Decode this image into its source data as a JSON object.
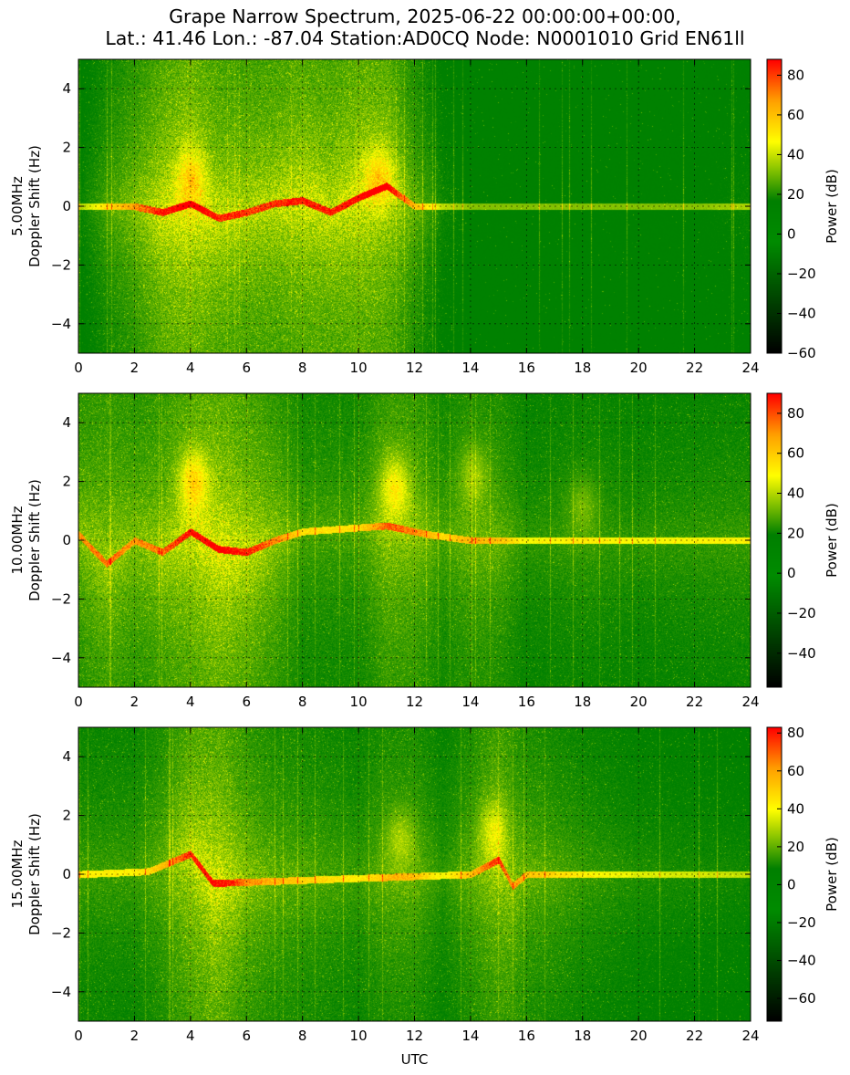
{
  "title": {
    "line1": "Grape Narrow Spectrum, 2025-06-22 00:00:00+00:00,",
    "line2": "Lat.: 41.46 Lon.: -87.04 Station:AD0CQ Node: N0001010 Grid EN61ll"
  },
  "chart_data": [
    {
      "type": "heatmap",
      "title": "",
      "xlabel": "",
      "ylabel_line1": "5.00MHz",
      "ylabel_line2": "Doppler Shift (Hz)",
      "xlim": [
        0,
        24
      ],
      "ylim": [
        -5,
        5
      ],
      "xticks": [
        0,
        2,
        4,
        6,
        8,
        10,
        12,
        14,
        16,
        18,
        20,
        22,
        24
      ],
      "yticks": [
        4,
        2,
        0,
        -2,
        -4
      ],
      "grid": true,
      "colorbar": {
        "label": "Power (dB)",
        "min": -60,
        "max": 88,
        "ticks": [
          80,
          60,
          40,
          20,
          0,
          -20,
          -40,
          -60
        ]
      },
      "activity": [
        {
          "t": 0,
          "a": 0.1
        },
        {
          "t": 1,
          "a": 0.35
        },
        {
          "t": 2,
          "a": 0.55
        },
        {
          "t": 3,
          "a": 0.85
        },
        {
          "t": 4,
          "a": 1.0
        },
        {
          "t": 5,
          "a": 0.8
        },
        {
          "t": 6,
          "a": 0.75
        },
        {
          "t": 7,
          "a": 0.75
        },
        {
          "t": 8,
          "a": 0.85
        },
        {
          "t": 9,
          "a": 0.8
        },
        {
          "t": 10,
          "a": 0.9
        },
        {
          "t": 11,
          "a": 0.85
        },
        {
          "t": 12,
          "a": 0.45
        },
        {
          "t": 13,
          "a": 0.15
        },
        {
          "t": 14,
          "a": 0.05
        },
        {
          "t": 22,
          "a": 0.05
        },
        {
          "t": 24,
          "a": 0.12
        }
      ],
      "doppler_trace": [
        {
          "t": 0,
          "f": 0.0
        },
        {
          "t": 2,
          "f": 0.0
        },
        {
          "t": 3,
          "f": -0.2
        },
        {
          "t": 4,
          "f": 0.1
        },
        {
          "t": 5,
          "f": -0.4
        },
        {
          "t": 6,
          "f": -0.2
        },
        {
          "t": 7,
          "f": 0.1
        },
        {
          "t": 8,
          "f": 0.2
        },
        {
          "t": 9,
          "f": -0.2
        },
        {
          "t": 10,
          "f": 0.3
        },
        {
          "t": 11,
          "f": 0.7
        },
        {
          "t": 12,
          "f": 0.0
        },
        {
          "t": 24,
          "f": 0.0
        }
      ],
      "peaks": [
        {
          "t": 4.0,
          "f": 1.0,
          "strength": 0.6
        },
        {
          "t": 10.7,
          "f": 1.0,
          "strength": 0.6
        }
      ]
    },
    {
      "type": "heatmap",
      "title": "",
      "xlabel": "",
      "ylabel_line1": "10.00MHz",
      "ylabel_line2": "Doppler Shift (Hz)",
      "xlim": [
        0,
        24
      ],
      "ylim": [
        -5,
        5
      ],
      "xticks": [
        0,
        2,
        4,
        6,
        8,
        10,
        12,
        14,
        16,
        18,
        20,
        22,
        24
      ],
      "yticks": [
        4,
        2,
        0,
        -2,
        -4
      ],
      "grid": true,
      "colorbar": {
        "label": "Power (dB)",
        "min": -57,
        "max": 90,
        "ticks": [
          80,
          60,
          40,
          20,
          0,
          -20,
          -40
        ]
      },
      "activity": [
        {
          "t": 0,
          "a": 0.55
        },
        {
          "t": 1,
          "a": 0.65
        },
        {
          "t": 2,
          "a": 0.55
        },
        {
          "t": 3,
          "a": 0.65
        },
        {
          "t": 4,
          "a": 0.85
        },
        {
          "t": 5,
          "a": 0.95
        },
        {
          "t": 6,
          "a": 0.8
        },
        {
          "t": 7,
          "a": 0.6
        },
        {
          "t": 8,
          "a": 0.35
        },
        {
          "t": 10,
          "a": 0.35
        },
        {
          "t": 11,
          "a": 0.65
        },
        {
          "t": 12,
          "a": 0.6
        },
        {
          "t": 13,
          "a": 0.35
        },
        {
          "t": 14,
          "a": 0.5
        },
        {
          "t": 15,
          "a": 0.45
        },
        {
          "t": 16,
          "a": 0.25
        },
        {
          "t": 18,
          "a": 0.3
        },
        {
          "t": 20,
          "a": 0.25
        },
        {
          "t": 24,
          "a": 0.3
        }
      ],
      "doppler_trace": [
        {
          "t": 0,
          "f": 0.2
        },
        {
          "t": 1,
          "f": -0.8
        },
        {
          "t": 2,
          "f": 0.0
        },
        {
          "t": 3,
          "f": -0.4
        },
        {
          "t": 4,
          "f": 0.3
        },
        {
          "t": 5,
          "f": -0.3
        },
        {
          "t": 6,
          "f": -0.4
        },
        {
          "t": 7,
          "f": 0.0
        },
        {
          "t": 8,
          "f": 0.3
        },
        {
          "t": 11,
          "f": 0.5
        },
        {
          "t": 12.5,
          "f": 0.2
        },
        {
          "t": 14,
          "f": 0.0
        },
        {
          "t": 24,
          "f": 0.0
        }
      ],
      "peaks": [
        {
          "t": 4.1,
          "f": 2.0,
          "strength": 0.8
        },
        {
          "t": 11.3,
          "f": 1.8,
          "strength": 0.7
        },
        {
          "t": 14.1,
          "f": 2.2,
          "strength": 0.4
        },
        {
          "t": 18.0,
          "f": 1.2,
          "strength": 0.3
        }
      ]
    },
    {
      "type": "heatmap",
      "title": "",
      "xlabel": "UTC",
      "ylabel_line1": "15.00MHz",
      "ylabel_line2": "Doppler Shift (Hz)",
      "xlim": [
        0,
        24
      ],
      "ylim": [
        -5,
        5
      ],
      "xticks": [
        0,
        2,
        4,
        6,
        8,
        10,
        12,
        14,
        16,
        18,
        20,
        22,
        24
      ],
      "yticks": [
        4,
        2,
        0,
        -2,
        -4
      ],
      "grid": true,
      "colorbar": {
        "label": "Power (dB)",
        "min": -72,
        "max": 83,
        "ticks": [
          80,
          60,
          40,
          20,
          0,
          -20,
          -40,
          -60
        ]
      },
      "activity": [
        {
          "t": 0,
          "a": 0.3
        },
        {
          "t": 2,
          "a": 0.3
        },
        {
          "t": 3,
          "a": 0.45
        },
        {
          "t": 4,
          "a": 0.8
        },
        {
          "t": 5,
          "a": 0.9
        },
        {
          "t": 6,
          "a": 0.6
        },
        {
          "t": 7,
          "a": 0.45
        },
        {
          "t": 8,
          "a": 0.4
        },
        {
          "t": 10,
          "a": 0.3
        },
        {
          "t": 11,
          "a": 0.45
        },
        {
          "t": 12,
          "a": 0.45
        },
        {
          "t": 13,
          "a": 0.25
        },
        {
          "t": 14,
          "a": 0.45
        },
        {
          "t": 15,
          "a": 0.7
        },
        {
          "t": 16,
          "a": 0.45
        },
        {
          "t": 18,
          "a": 0.3
        },
        {
          "t": 20,
          "a": 0.2
        },
        {
          "t": 24,
          "a": 0.15
        }
      ],
      "doppler_trace": [
        {
          "t": 0,
          "f": 0.0
        },
        {
          "t": 2.5,
          "f": 0.1
        },
        {
          "t": 4,
          "f": 0.7
        },
        {
          "t": 4.8,
          "f": -0.3
        },
        {
          "t": 14,
          "f": 0.0
        },
        {
          "t": 15,
          "f": 0.5
        },
        {
          "t": 15.5,
          "f": -0.4
        },
        {
          "t": 16,
          "f": 0.0
        },
        {
          "t": 24,
          "f": 0.0
        }
      ],
      "peaks": [
        {
          "t": 11.5,
          "f": 1.2,
          "strength": 0.4
        },
        {
          "t": 14.8,
          "f": 1.5,
          "strength": 0.5
        }
      ]
    }
  ]
}
